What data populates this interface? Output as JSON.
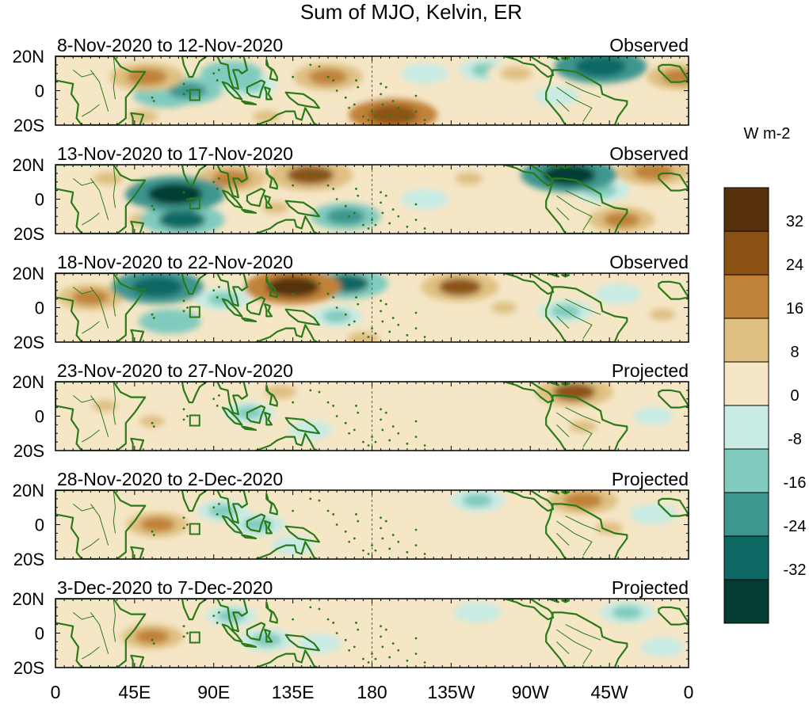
{
  "chart_data": {
    "type": "heatmap",
    "title": "Sum of MJO, Kelvin, ER",
    "units_label": "W m-2",
    "x_tick_labels": [
      "0",
      "45E",
      "90E",
      "135E",
      "180",
      "135W",
      "90W",
      "45W",
      "0"
    ],
    "x_ticks_deg_east": [
      0,
      45,
      90,
      135,
      180,
      225,
      270,
      315,
      360
    ],
    "y_tick_labels": [
      "20N",
      "0",
      "20S"
    ],
    "y_ticks_deg": [
      20,
      0,
      -20
    ],
    "xlim": [
      0,
      360
    ],
    "ylim": [
      -20,
      20
    ],
    "dateline_deg": 180,
    "colorbar": {
      "labels": [
        "32",
        "24",
        "16",
        "8",
        "0",
        "-8",
        "-16",
        "-24",
        "-32"
      ],
      "levels": [
        32,
        24,
        16,
        8,
        0,
        -8,
        -16,
        -24,
        -32
      ],
      "colors_top_to_bottom": [
        "#56310c",
        "#8c5214",
        "#c08237",
        "#dfc081",
        "#f5e6c6",
        "#c8ebe4",
        "#80cbbe",
        "#3d968f",
        "#0d6863",
        "#063d33"
      ]
    },
    "land_color": "#2a7a1a",
    "panels": [
      {
        "date_range": "8-Nov-2020 to 12-Nov-2020",
        "status": "Observed",
        "features": [
          {
            "lon": 52,
            "lat": 8,
            "value": 22
          },
          {
            "lon": 75,
            "lat": 0,
            "value": -20
          },
          {
            "lon": 62,
            "lat": -3,
            "value": -16
          },
          {
            "lon": 50,
            "lat": -15,
            "value": 12
          },
          {
            "lon": 100,
            "lat": 10,
            "value": -16
          },
          {
            "lon": 110,
            "lat": 3,
            "value": -12
          },
          {
            "lon": 120,
            "lat": -15,
            "value": 10
          },
          {
            "lon": 155,
            "lat": 8,
            "value": 20
          },
          {
            "lon": 175,
            "lat": 0,
            "value": 6
          },
          {
            "lon": 192,
            "lat": -14,
            "value": 30
          },
          {
            "lon": 210,
            "lat": 10,
            "value": -8
          },
          {
            "lon": 245,
            "lat": 12,
            "value": -12
          },
          {
            "lon": 262,
            "lat": 10,
            "value": 14
          },
          {
            "lon": 285,
            "lat": -3,
            "value": -6
          },
          {
            "lon": 310,
            "lat": 14,
            "value": -32
          },
          {
            "lon": 355,
            "lat": 8,
            "value": 18
          }
        ]
      },
      {
        "date_range": "13-Nov-2020 to 17-Nov-2020",
        "status": "Observed",
        "features": [
          {
            "lon": 30,
            "lat": 12,
            "value": 12
          },
          {
            "lon": 50,
            "lat": -12,
            "value": 12
          },
          {
            "lon": 68,
            "lat": 3,
            "value": -36
          },
          {
            "lon": 72,
            "lat": -12,
            "value": -28
          },
          {
            "lon": 100,
            "lat": 12,
            "value": 20
          },
          {
            "lon": 145,
            "lat": 14,
            "value": 28
          },
          {
            "lon": 125,
            "lat": -5,
            "value": 10
          },
          {
            "lon": 165,
            "lat": -10,
            "value": -20
          },
          {
            "lon": 210,
            "lat": 0,
            "value": -8
          },
          {
            "lon": 235,
            "lat": 12,
            "value": 10
          },
          {
            "lon": 292,
            "lat": 14,
            "value": -34
          },
          {
            "lon": 310,
            "lat": 5,
            "value": -14
          },
          {
            "lon": 322,
            "lat": -12,
            "value": 18
          },
          {
            "lon": 340,
            "lat": 16,
            "value": 22
          }
        ]
      },
      {
        "date_range": "18-Nov-2020 to 22-Nov-2020",
        "status": "Observed",
        "features": [
          {
            "lon": 20,
            "lat": 6,
            "value": 18
          },
          {
            "lon": 58,
            "lat": 12,
            "value": -32
          },
          {
            "lon": 65,
            "lat": -8,
            "value": -16
          },
          {
            "lon": 95,
            "lat": 5,
            "value": -12
          },
          {
            "lon": 135,
            "lat": 12,
            "value": 34
          },
          {
            "lon": 165,
            "lat": 14,
            "value": -28
          },
          {
            "lon": 160,
            "lat": -5,
            "value": -10
          },
          {
            "lon": 175,
            "lat": -18,
            "value": 14
          },
          {
            "lon": 230,
            "lat": 12,
            "value": 24
          },
          {
            "lon": 255,
            "lat": 0,
            "value": 8
          },
          {
            "lon": 290,
            "lat": -2,
            "value": -12
          },
          {
            "lon": 320,
            "lat": 8,
            "value": -8
          },
          {
            "lon": 345,
            "lat": -4,
            "value": 8
          }
        ]
      },
      {
        "date_range": "23-Nov-2020 to 27-Nov-2020",
        "status": "Projected",
        "features": [
          {
            "lon": 28,
            "lat": 6,
            "value": 8
          },
          {
            "lon": 55,
            "lat": -3,
            "value": 8
          },
          {
            "lon": 80,
            "lat": 6,
            "value": 6
          },
          {
            "lon": 110,
            "lat": 2,
            "value": -10
          },
          {
            "lon": 128,
            "lat": 14,
            "value": 14
          },
          {
            "lon": 145,
            "lat": -8,
            "value": -6
          },
          {
            "lon": 175,
            "lat": 10,
            "value": 4
          },
          {
            "lon": 230,
            "lat": -2,
            "value": 4
          },
          {
            "lon": 295,
            "lat": 14,
            "value": 24
          },
          {
            "lon": 300,
            "lat": -6,
            "value": 10
          },
          {
            "lon": 340,
            "lat": 0,
            "value": -4
          }
        ]
      },
      {
        "date_range": "28-Nov-2020 to 2-Dec-2020",
        "status": "Projected",
        "features": [
          {
            "lon": 58,
            "lat": 0,
            "value": 16
          },
          {
            "lon": 95,
            "lat": 8,
            "value": -10
          },
          {
            "lon": 115,
            "lat": 0,
            "value": -12
          },
          {
            "lon": 135,
            "lat": -12,
            "value": -6
          },
          {
            "lon": 200,
            "lat": 10,
            "value": 6
          },
          {
            "lon": 240,
            "lat": 14,
            "value": -12
          },
          {
            "lon": 245,
            "lat": 3,
            "value": 6
          },
          {
            "lon": 300,
            "lat": 14,
            "value": 20
          },
          {
            "lon": 315,
            "lat": -2,
            "value": 10
          },
          {
            "lon": 340,
            "lat": 6,
            "value": -8
          }
        ]
      },
      {
        "date_range": "3-Dec-2020 to 7-Dec-2020",
        "status": "Projected",
        "features": [
          {
            "lon": 55,
            "lat": -2,
            "value": 16
          },
          {
            "lon": 75,
            "lat": 8,
            "value": 6
          },
          {
            "lon": 100,
            "lat": 10,
            "value": -10
          },
          {
            "lon": 120,
            "lat": -4,
            "value": -12
          },
          {
            "lon": 150,
            "lat": -6,
            "value": -6
          },
          {
            "lon": 185,
            "lat": 8,
            "value": 6
          },
          {
            "lon": 240,
            "lat": 12,
            "value": -8
          },
          {
            "lon": 280,
            "lat": -4,
            "value": 6
          },
          {
            "lon": 325,
            "lat": 12,
            "value": -12
          },
          {
            "lon": 345,
            "lat": -8,
            "value": -6
          }
        ]
      }
    ]
  }
}
